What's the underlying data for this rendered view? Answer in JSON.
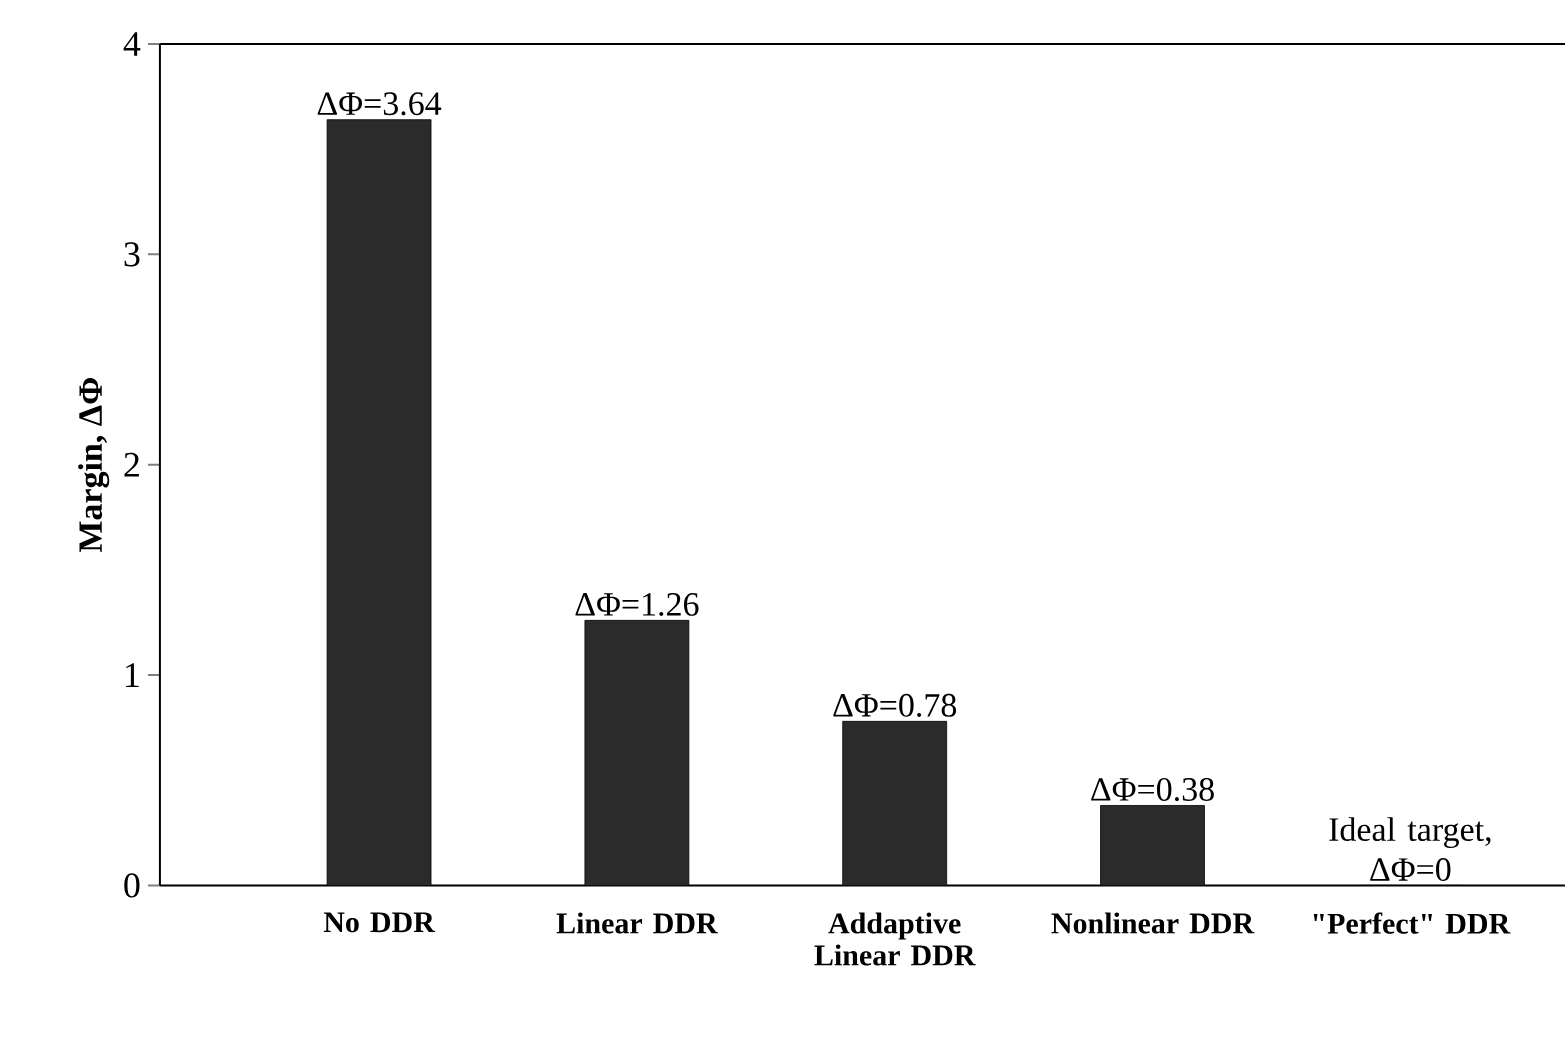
{
  "chart_data": {
    "type": "bar",
    "ylabel": "Margin, ΔΦ",
    "categories": [
      "No DDR",
      "Linear DDR",
      "Addaptive Linear DDR",
      "Nonlinear DDR",
      "\"Perfect\" DDR"
    ],
    "values": [
      3.64,
      1.26,
      0.78,
      0.38,
      0
    ],
    "value_labels": [
      "ΔΦ=3.64",
      "ΔΦ=1.26",
      "ΔΦ=0.78",
      "ΔΦ=0.38",
      "Ideal target, ΔΦ=0"
    ],
    "color": "#2b2b2b",
    "ylim": [
      0,
      4
    ],
    "yticks": [
      0,
      1,
      2,
      3,
      4
    ]
  }
}
